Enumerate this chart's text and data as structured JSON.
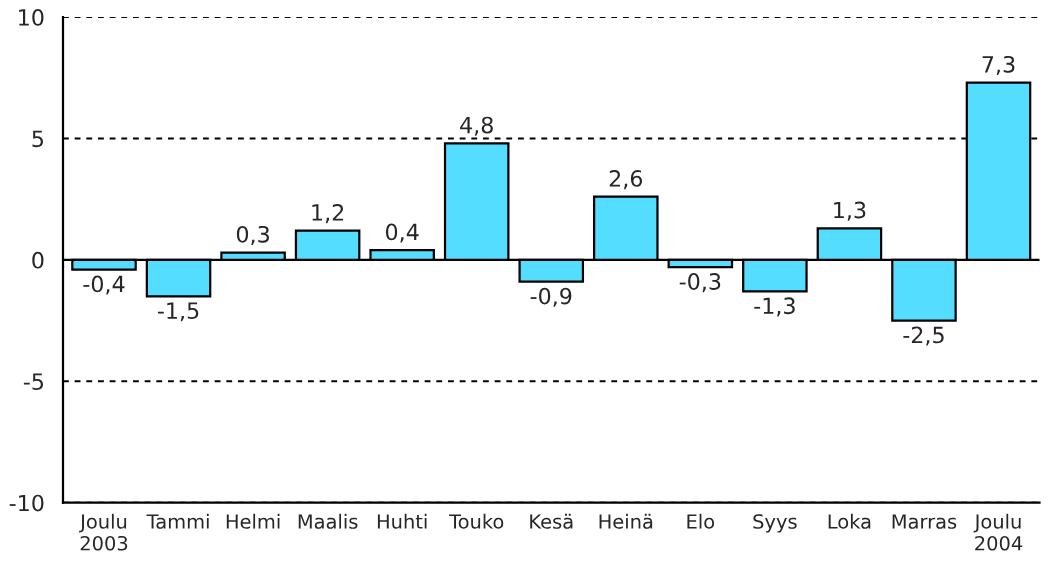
{
  "chart_data": {
    "type": "bar",
    "categories": [
      "Joulu\n2003",
      "Tammi",
      "Helmi",
      "Maalis",
      "Huhti",
      "Touko",
      "Kesä",
      "Heinä",
      "Elo",
      "Syys",
      "Loka",
      "Marras",
      "Joulu\n2004"
    ],
    "values": [
      -0.4,
      -1.5,
      0.3,
      1.2,
      0.4,
      4.8,
      -0.9,
      2.6,
      -0.3,
      -1.3,
      1.3,
      -2.5,
      7.3
    ],
    "value_labels": [
      "-0,4",
      "-1,5",
      "0,3",
      "1,2",
      "0,4",
      "4,8",
      "-0,9",
      "2,6",
      "-0,3",
      "-1,3",
      "1,3",
      "-2,5",
      "7,3"
    ],
    "color": "#55ddff",
    "ylim": [
      -10,
      10
    ],
    "yticks": [
      -10,
      -5,
      0,
      5,
      10
    ],
    "grid": "y"
  }
}
